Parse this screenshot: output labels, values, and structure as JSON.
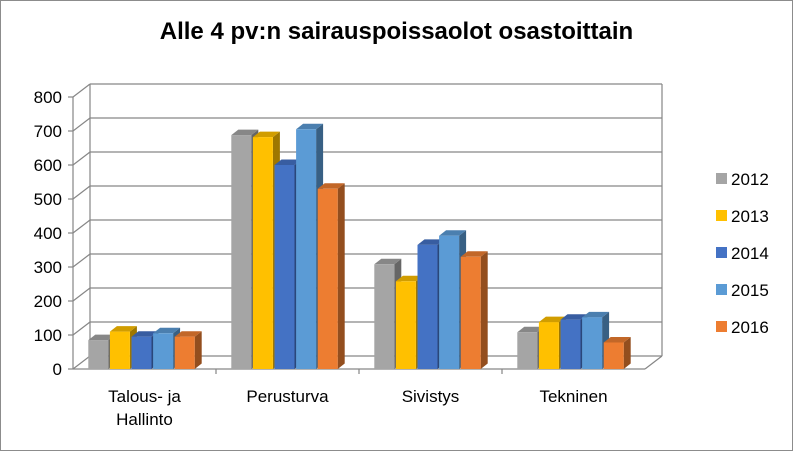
{
  "chart_data": {
    "type": "bar",
    "title": "Alle 4 pv:n sairauspoissaolot osastoittain",
    "xlabel": "",
    "ylabel": "",
    "ylim": [
      0,
      800
    ],
    "yticks": [
      "0",
      "100",
      "200",
      "300",
      "400",
      "500",
      "600",
      "700",
      "800"
    ],
    "grid": true,
    "legend": "right",
    "categories": [
      [
        "Talous- ja",
        "Hallinto"
      ],
      [
        "Perusturva"
      ],
      [
        "Sivistys"
      ],
      [
        "Tekninen"
      ]
    ],
    "series": [
      {
        "name": "2012",
        "color": "#a5a5a5",
        "values": [
          85,
          688,
          308,
          108
        ]
      },
      {
        "name": "2013",
        "color": "#ffc000",
        "values": [
          110,
          682,
          258,
          138
        ]
      },
      {
        "name": "2014",
        "color": "#4472c4",
        "values": [
          95,
          600,
          365,
          145
        ]
      },
      {
        "name": "2015",
        "color": "#5b9bd5",
        "values": [
          105,
          705,
          392,
          152
        ]
      },
      {
        "name": "2016",
        "color": "#ed7d31",
        "values": [
          95,
          530,
          330,
          78
        ]
      }
    ]
  }
}
